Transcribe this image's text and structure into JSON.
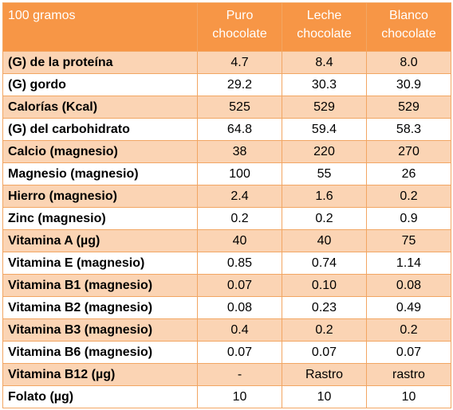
{
  "header": {
    "label": "100 gramos",
    "columns": [
      {
        "line1": "Puro",
        "line2": "chocolate"
      },
      {
        "line1": "Leche",
        "line2": "chocolate"
      },
      {
        "line1": "Blanco",
        "line2": "chocolate"
      }
    ]
  },
  "rows": [
    {
      "label": "(G) de la proteína",
      "values": [
        "4.7",
        "8.4",
        "8.0"
      ]
    },
    {
      "label": "(G) gordo",
      "values": [
        "29.2",
        "30.3",
        "30.9"
      ]
    },
    {
      "label": "Calorías (Kcal)",
      "values": [
        "525",
        "529",
        "529"
      ]
    },
    {
      "label": "(G) del carbohidrato",
      "values": [
        "64.8",
        "59.4",
        "58.3"
      ]
    },
    {
      "label": "Calcio (magnesio)",
      "values": [
        "38",
        "220",
        "270"
      ]
    },
    {
      "label": "Magnesio (magnesio)",
      "values": [
        "100",
        "55",
        "26"
      ]
    },
    {
      "label": "Hierro (magnesio)",
      "values": [
        "2.4",
        "1.6",
        "0.2"
      ]
    },
    {
      "label": "Zinc (magnesio)",
      "values": [
        "0.2",
        "0.2",
        "0.9"
      ]
    },
    {
      "label": "Vitamina A (µg)",
      "values": [
        "40",
        "40",
        "75"
      ]
    },
    {
      "label": "Vitamina E (magnesio)",
      "values": [
        "0.85",
        "0.74",
        "1.14"
      ]
    },
    {
      "label": "Vitamina B1 (magnesio)",
      "values": [
        "0.07",
        "0.10",
        "0.08"
      ]
    },
    {
      "label": "Vitamina B2 (magnesio)",
      "values": [
        "0.08",
        "0.23",
        "0.49"
      ]
    },
    {
      "label": "Vitamina B3 (magnesio)",
      "values": [
        "0.4",
        "0.2",
        "0.2"
      ]
    },
    {
      "label": "Vitamina B6 (magnesio)",
      "values": [
        "0.07",
        "0.07",
        "0.07"
      ]
    },
    {
      "label": "Vitamina B12 (µg)",
      "values": [
        "-",
        "Rastro",
        "rastro"
      ]
    },
    {
      "label": "Folato (µg)",
      "values": [
        "10",
        "10",
        "10"
      ]
    }
  ]
}
